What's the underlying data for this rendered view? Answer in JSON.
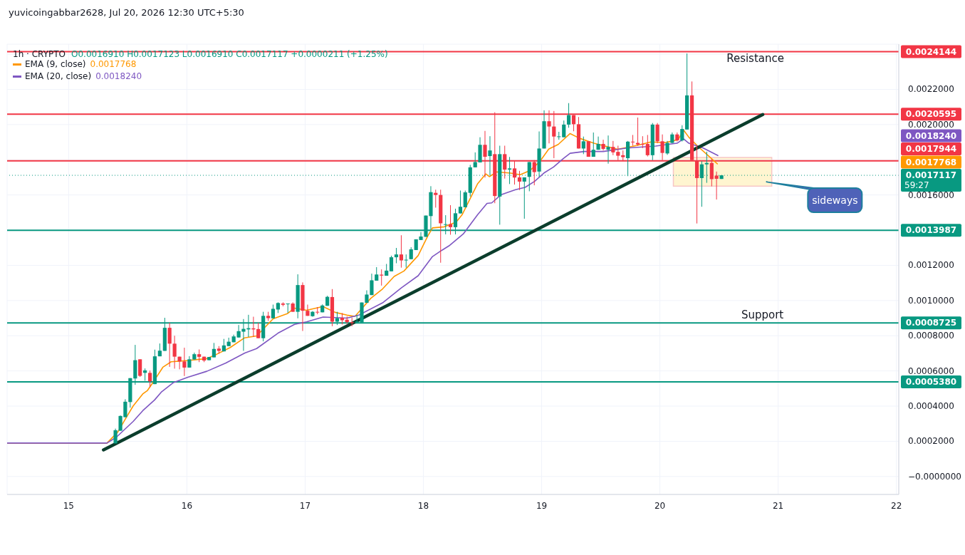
{
  "chart_data": {
    "type": "candlestick",
    "title": "1h · CRYPTO",
    "subtitle": "O0.0016910 H0.0017123 L0.0016910 C0.0017117 +0.0000211 (+1.25%)",
    "x": [
      15.396,
      15.438,
      15.479,
      15.521,
      15.563,
      15.604,
      15.646,
      15.688,
      15.729,
      15.771,
      15.813,
      15.854,
      15.896,
      15.938,
      15.979,
      16.021,
      16.063,
      16.104,
      16.146,
      16.188,
      16.229,
      16.271,
      16.313,
      16.354,
      16.396,
      16.438,
      16.479,
      16.521,
      16.563,
      16.604,
      16.646,
      16.688,
      16.729,
      16.771,
      16.813,
      16.854,
      16.896,
      16.938,
      16.979,
      17.021,
      17.063,
      17.104,
      17.146,
      17.188,
      17.229,
      17.271,
      17.313,
      17.354,
      17.396,
      17.438,
      17.479,
      17.521,
      17.563,
      17.604,
      17.646,
      17.688,
      17.729,
      17.771,
      17.813,
      17.854,
      17.896,
      17.938,
      17.979,
      18.021,
      18.063,
      18.104,
      18.146,
      18.188,
      18.229,
      18.271,
      18.313,
      18.354,
      18.396,
      18.438,
      18.479,
      18.521,
      18.563,
      18.604,
      18.646,
      18.688,
      18.729,
      18.771,
      18.813,
      18.854,
      18.896,
      18.938,
      18.979,
      19.021,
      19.063,
      19.104,
      19.146,
      19.188,
      19.229,
      19.271,
      19.313,
      19.354,
      19.396,
      19.438,
      19.479,
      19.521,
      19.563,
      19.604,
      19.646,
      19.688,
      19.729,
      19.771,
      19.813,
      19.854,
      19.896,
      19.938,
      19.979,
      20.021,
      20.063,
      20.104,
      20.146,
      20.188,
      20.229,
      20.271,
      20.313,
      20.354,
      20.396,
      20.438,
      20.479,
      20.521
    ],
    "ohlc": [
      [
        0.000188,
        0.000272,
        0.000188,
        0.000263
      ],
      [
        0.00026,
        0.000347,
        0.00026,
        0.000344
      ],
      [
        0.000337,
        0.000439,
        0.000337,
        0.000425
      ],
      [
        0.000423,
        0.000559,
        0.000391,
        0.000559
      ],
      [
        0.000557,
        0.000748,
        0.000521,
        0.000661
      ],
      [
        0.000666,
        0.000666,
        0.000566,
        0.000572
      ],
      [
        0.000589,
        0.000614,
        0.000544,
        0.000603
      ],
      [
        0.000589,
        0.000602,
        0.000507,
        0.000541
      ],
      [
        0.000525,
        0.000721,
        0.000525,
        0.000683
      ],
      [
        0.000683,
        0.000756,
        0.000683,
        0.000715
      ],
      [
        0.000714,
        0.000902,
        0.000714,
        0.000845
      ],
      [
        0.000845,
        0.000874,
        0.000623,
        0.000755
      ],
      [
        0.000755,
        0.0008,
        0.000613,
        0.000681
      ],
      [
        0.000681,
        0.000681,
        0.000609,
        0.000654
      ],
      [
        0.000654,
        0.000732,
        0.000571,
        0.000619
      ],
      [
        0.000619,
        0.000684,
        0.000619,
        0.000666
      ],
      [
        0.000665,
        0.000704,
        0.000665,
        0.000695
      ],
      [
        0.000695,
        0.000722,
        0.00065,
        0.00068
      ],
      [
        0.000681,
        0.000681,
        0.00065,
        0.000659
      ],
      [
        0.000661,
        0.000679,
        0.000661,
        0.000679
      ],
      [
        0.000677,
        0.000759,
        0.000677,
        0.000725
      ],
      [
        0.000727,
        0.000741,
        0.000698,
        0.000714
      ],
      [
        0.000711,
        0.000782,
        0.000711,
        0.000745
      ],
      [
        0.000741,
        0.000789,
        0.000741,
        0.000766
      ],
      [
        0.000763,
        0.000806,
        0.000763,
        0.000796
      ],
      [
        0.00079,
        0.000861,
        0.00079,
        0.000826
      ],
      [
        0.000823,
        0.000895,
        0.000714,
        0.000839
      ],
      [
        0.000836,
        0.000919,
        0.000793,
        0.000843
      ],
      [
        0.000842,
        0.000908,
        0.000793,
        0.000836
      ],
      [
        0.000838,
        0.000874,
        0.000786,
        0.000786
      ],
      [
        0.000786,
        0.000936,
        0.000768,
        0.000913
      ],
      [
        0.000913,
        0.000936,
        0.000884,
        0.0009
      ],
      [
        0.000899,
        0.000977,
        0.000899,
        0.000953
      ],
      [
        0.000949,
        0.00099,
        0.000929,
        0.000986
      ],
      [
        0.000983,
        0.00099,
        0.000967,
        0.000976
      ],
      [
        0.00098,
        0.000983,
        0.000929,
        0.000983
      ],
      [
        0.000983,
        0.00099,
        0.000936,
        0.000936
      ],
      [
        0.000936,
        0.001149,
        0.000899,
        0.001088
      ],
      [
        0.001088,
        0.001103,
        0.000827,
        0.000942
      ],
      [
        0.000942,
        0.000977,
        0.000913,
        0.000913
      ],
      [
        0.000911,
        0.00094,
        0.000908,
        0.000936
      ],
      [
        0.000936,
        0.000963,
        0.000922,
        0.000934
      ],
      [
        0.000933,
        0.000978,
        0.000933,
        0.000972
      ],
      [
        0.00097,
        0.001027,
        0.00097,
        0.001021
      ],
      [
        0.00102,
        0.001065,
        0.000854,
        0.00088
      ],
      [
        0.00088,
        0.000936,
        0.000861,
        0.0009
      ],
      [
        0.000902,
        0.000929,
        0.000864,
        0.000888
      ],
      [
        0.000891,
        0.000909,
        0.000868,
        0.000877
      ],
      [
        0.000877,
        0.000902,
        0.000854,
        0.000872
      ],
      [
        0.000872,
        0.000918,
        0.000872,
        0.000881
      ],
      [
        0.000875,
        0.000989,
        0.000875,
        0.000989
      ],
      [
        0.000987,
        0.001058,
        0.000987,
        0.001034
      ],
      [
        0.001031,
        0.001153,
        0.001031,
        0.001115
      ],
      [
        0.001113,
        0.00119,
        0.001113,
        0.001148
      ],
      [
        0.001147,
        0.001177,
        0.001085,
        0.001142
      ],
      [
        0.001141,
        0.001208,
        0.001141,
        0.00117
      ],
      [
        0.001166,
        0.001255,
        0.001166,
        0.001246
      ],
      [
        0.001246,
        0.001299,
        0.001212,
        0.001262
      ],
      [
        0.001262,
        0.001371,
        0.001187,
        0.001228
      ],
      [
        0.001228,
        0.001262,
        0.001187,
        0.001232
      ],
      [
        0.001235,
        0.001303,
        0.001235,
        0.001291
      ],
      [
        0.001287,
        0.001348,
        0.001287,
        0.001348
      ],
      [
        0.001344,
        0.001389,
        0.001344,
        0.001364
      ],
      [
        0.001362,
        0.001483,
        0.001362,
        0.001483
      ],
      [
        0.00148,
        0.00165,
        0.001398,
        0.001616
      ],
      [
        0.001612,
        0.00163,
        0.001528,
        0.0016
      ],
      [
        0.0016,
        0.00163,
        0.001215,
        0.001439
      ],
      [
        0.001434,
        0.001485,
        0.001376,
        0.001434
      ],
      [
        0.001434,
        0.001542,
        0.001374,
        0.001417
      ],
      [
        0.001417,
        0.001522,
        0.001376,
        0.001496
      ],
      [
        0.001495,
        0.001625,
        0.001495,
        0.001533
      ],
      [
        0.00153,
        0.001625,
        0.00153,
        0.001615
      ],
      [
        0.001612,
        0.001771,
        0.001591,
        0.001757
      ],
      [
        0.001757,
        0.001842,
        0.001757,
        0.001787
      ],
      [
        0.001785,
        0.001928,
        0.001785,
        0.001885
      ],
      [
        0.001885,
        0.001964,
        0.001699,
        0.001817
      ],
      [
        0.001821,
        0.001934,
        0.00171,
        0.001853
      ],
      [
        0.001832,
        0.00207,
        0.001553,
        0.001594
      ],
      [
        0.001591,
        0.00188,
        0.001431,
        0.001832
      ],
      [
        0.001832,
        0.00188,
        0.001693,
        0.001744
      ],
      [
        0.001744,
        0.001816,
        0.001662,
        0.001751
      ],
      [
        0.001751,
        0.001796,
        0.001659,
        0.001699
      ],
      [
        0.0017,
        0.001737,
        0.001628,
        0.001676
      ],
      [
        0.001676,
        0.0017,
        0.001465,
        0.0017
      ],
      [
        0.001703,
        0.001787,
        0.001621,
        0.001787
      ],
      [
        0.001787,
        0.001798,
        0.001655,
        0.00173
      ],
      [
        0.001733,
        0.001961,
        0.001703,
        0.001864
      ],
      [
        0.001864,
        0.002081,
        0.001864,
        0.002019
      ],
      [
        0.002019,
        0.002081,
        0.001893,
        0.001989
      ],
      [
        0.001989,
        0.002077,
        0.001809,
        0.001932
      ],
      [
        0.001932,
        0.001959,
        0.001914,
        0.001933
      ],
      [
        0.001928,
        0.002023,
        0.001928,
        0.002
      ],
      [
        0.002,
        0.002122,
        0.001982,
        0.002054
      ],
      [
        0.002054,
        0.002054,
        0.001962,
        0.002002
      ],
      [
        0.002002,
        0.002043,
        0.001864,
        0.001864
      ],
      [
        0.001864,
        0.001932,
        0.001832,
        0.001905
      ],
      [
        0.001905,
        0.001905,
        0.001817,
        0.001817
      ],
      [
        0.001817,
        0.001955,
        0.001817,
        0.001857
      ],
      [
        0.001857,
        0.001932,
        0.001857,
        0.00189
      ],
      [
        0.00189,
        0.001914,
        0.001853,
        0.001862
      ],
      [
        0.001857,
        0.001938,
        0.001778,
        0.001873
      ],
      [
        0.001873,
        0.001907,
        0.001826,
        0.001842
      ],
      [
        0.001845,
        0.00188,
        0.001798,
        0.001823
      ],
      [
        0.001826,
        0.001853,
        0.001792,
        0.001815
      ],
      [
        0.001809,
        0.001907,
        0.001707,
        0.001903
      ],
      [
        0.001903,
        0.001941,
        0.00188,
        0.0019
      ],
      [
        0.001896,
        0.00204,
        0.00188,
        0.001887
      ],
      [
        0.00189,
        0.001934,
        0.001866,
        0.001887
      ],
      [
        0.00189,
        0.001941,
        0.001819,
        0.001826
      ],
      [
        0.001826,
        0.002009,
        0.001798,
        0.002
      ],
      [
        0.002,
        0.002009,
        0.001894,
        0.001905
      ],
      [
        0.001905,
        0.001944,
        0.001798,
        0.001839
      ],
      [
        0.001836,
        0.001907,
        0.001828,
        0.001896
      ],
      [
        0.001896,
        0.001955,
        0.001894,
        0.001944
      ],
      [
        0.001944,
        0.001955,
        0.001904,
        0.00191
      ],
      [
        0.00191,
        0.001996,
        0.001904,
        0.001975
      ],
      [
        0.001972,
        0.002404,
        0.001972,
        0.002166
      ],
      [
        0.002166,
        0.002245,
        0.001798,
        0.001798
      ],
      [
        0.001796,
        0.00188,
        0.001438,
        0.001696
      ],
      [
        0.001696,
        0.001792,
        0.001533,
        0.001774
      ],
      [
        0.001774,
        0.001846,
        0.001669,
        0.001782
      ],
      [
        0.001782,
        0.001805,
        0.001649,
        0.00169
      ],
      [
        0.00171,
        0.001733,
        0.001574,
        0.001692
      ],
      [
        0.001691,
        0.0017123,
        0.001691,
        0.0017117
      ]
    ],
    "series": [
      {
        "name": "EMA (9, close)",
        "type": "line",
        "color": "#ff9800",
        "x": [
          14.48,
          15.325,
          15.416,
          15.486,
          15.546,
          15.627,
          15.667,
          15.717,
          15.797,
          15.867,
          16.008,
          16.169,
          16.247,
          16.367,
          16.488,
          16.59,
          16.729,
          16.849,
          16.91,
          17.012,
          17.151,
          17.253,
          17.354,
          17.422,
          17.554,
          17.655,
          17.753,
          17.836,
          17.956,
          18.036,
          18.077,
          18.177,
          18.277,
          18.327,
          18.408,
          18.458,
          18.528,
          18.558,
          18.619,
          18.739,
          18.819,
          18.899,
          18.98,
          19.06,
          19.14,
          19.241,
          19.321,
          19.442,
          19.643,
          19.803,
          19.923,
          20.044,
          20.155,
          20.2,
          20.245,
          20.325,
          20.405,
          20.486
        ],
        "values": [
          0.00019,
          0.00019,
          0.000253,
          0.000334,
          0.000401,
          0.000469,
          0.000489,
          0.000538,
          0.000621,
          0.000652,
          0.000659,
          0.00067,
          0.000693,
          0.000733,
          0.000788,
          0.000799,
          0.000896,
          0.000925,
          0.000957,
          0.000945,
          0.000966,
          0.000933,
          0.000917,
          0.00091,
          0.001012,
          0.001066,
          0.001137,
          0.001168,
          0.001256,
          0.001365,
          0.001413,
          0.001419,
          0.001446,
          0.001487,
          0.001596,
          0.001663,
          0.00172,
          0.001704,
          0.001731,
          0.001724,
          0.001715,
          0.001738,
          0.001786,
          0.001861,
          0.001887,
          0.001949,
          0.001922,
          0.001894,
          0.00186,
          0.001881,
          0.001901,
          0.001897,
          0.001915,
          0.001969,
          0.001928,
          0.001874,
          0.001826,
          0.0017768
        ]
      },
      {
        "name": "EMA (20, close)",
        "type": "line",
        "color": "#7e57c2",
        "x": [
          14.48,
          15.325,
          15.405,
          15.546,
          15.627,
          15.727,
          15.787,
          15.887,
          16.008,
          16.169,
          16.33,
          16.49,
          16.59,
          16.771,
          16.911,
          17.012,
          17.152,
          17.354,
          17.454,
          17.655,
          17.815,
          17.956,
          18.077,
          18.157,
          18.217,
          18.337,
          18.458,
          18.538,
          18.578,
          18.658,
          18.779,
          18.86,
          18.94,
          19.02,
          19.101,
          19.181,
          19.241,
          19.361,
          19.522,
          19.723,
          19.964,
          20.145,
          20.2,
          20.245,
          20.366,
          20.49
        ],
        "values": [
          0.00019,
          0.00019,
          0.000224,
          0.000313,
          0.000374,
          0.000435,
          0.000482,
          0.000534,
          0.000564,
          0.000598,
          0.000645,
          0.000702,
          0.000727,
          0.000815,
          0.000865,
          0.000879,
          0.000906,
          0.0009,
          0.000917,
          0.000987,
          0.001073,
          0.001141,
          0.00125,
          0.001286,
          0.001311,
          0.001378,
          0.001487,
          0.001552,
          0.001555,
          0.001602,
          0.00163,
          0.001643,
          0.001677,
          0.001725,
          0.001759,
          0.001806,
          0.001837,
          0.001847,
          0.001847,
          0.001867,
          0.001878,
          0.001894,
          0.001919,
          0.001894,
          0.001867,
          0.001824
        ]
      },
      {
        "type": "line",
        "color": "#0b3d2c",
        "x": [
          15.295,
          20.87
        ],
        "values": [
          0.000151,
          0.002057
        ]
      }
    ],
    "xlim": [
      14.48,
      22.02
    ],
    "ylim": [
      -0.000102,
      0.002457
    ],
    "xticks": [
      15,
      16,
      17,
      18,
      19,
      20,
      21,
      22
    ],
    "yticks": [
      {
        "value": 0,
        "label": "−0.0000000"
      },
      {
        "value": 0.0002,
        "label": "0.0002000"
      },
      {
        "value": 0.0004,
        "label": "0.0004000"
      },
      {
        "value": 0.0006,
        "label": "0.0006000"
      },
      {
        "value": 0.0008,
        "label": "0.0008000"
      },
      {
        "value": 0.001,
        "label": "0.0010000"
      },
      {
        "value": 0.0012,
        "label": "0.0012000"
      },
      {
        "value": 0.0014,
        "label": null
      },
      {
        "value": 0.0016,
        "label": "0.0016000"
      },
      {
        "value": 0.0018,
        "label": null
      },
      {
        "value": 0.002,
        "label": "0.0020000"
      },
      {
        "value": 0.0022,
        "label": "0.0022000"
      },
      {
        "value": 0.0024,
        "label": null
      }
    ],
    "grid": true,
    "legend": "top left",
    "marker": "none",
    "line_style": "solid",
    "ref_lines": [
      {
        "axis": "y",
        "value": 0.0024144,
        "label": "0.0024144",
        "color": "#f23645"
      },
      {
        "axis": "y",
        "value": 0.0020595,
        "label": "0.0020595",
        "color": "#f23645"
      },
      {
        "axis": "y",
        "value": 0.0017944,
        "label": "0.0017944",
        "color": "#f23645"
      },
      {
        "axis": "y",
        "value": 0.0017117,
        "label": "0.0017117",
        "color": "#089981",
        "line_style": "dotted"
      },
      {
        "axis": "y",
        "value": 0.0013987,
        "label": "0.0013987",
        "color": "#089981"
      },
      {
        "axis": "y",
        "value": 0.0008725,
        "label": "0.0008725",
        "color": "#089981"
      },
      {
        "axis": "y",
        "value": 0.000538,
        "label": "0.0005380",
        "color": "#089981"
      }
    ],
    "annotations": [
      "yuvicoingabbar2628, Jul 20, 2026 12:30 UTC+5:30",
      "59:27",
      "0.0017768",
      "0.0018240",
      "Resistance",
      "Support",
      "sideways",
      "0.0017768",
      "0.0018240"
    ]
  }
}
